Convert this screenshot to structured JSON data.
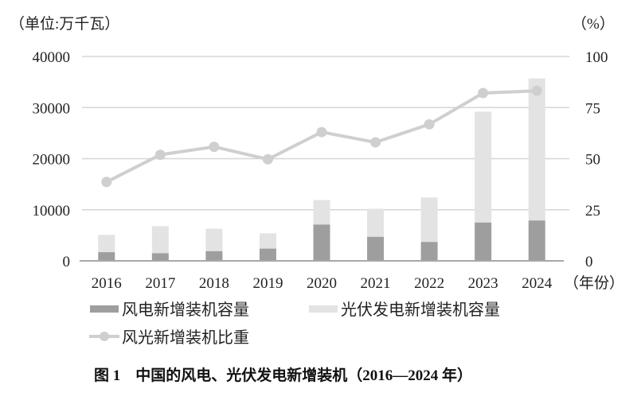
{
  "chart_data": {
    "type": "bar",
    "stacked": true,
    "categories": [
      "2016",
      "2017",
      "2018",
      "2019",
      "2020",
      "2021",
      "2022",
      "2023",
      "2024"
    ],
    "series": [
      {
        "name": "风电新增装机容量",
        "type": "bar",
        "axis": "left",
        "color": "#9e9e9e",
        "values": [
          1700,
          1500,
          1900,
          2400,
          7100,
          4700,
          3700,
          7500,
          7900
        ]
      },
      {
        "name": "光伏发电新增装机容量",
        "type": "bar",
        "axis": "left",
        "color": "#e3e3e3",
        "values": [
          3400,
          5300,
          4400,
          3000,
          4800,
          5500,
          8700,
          21700,
          27800
        ]
      },
      {
        "name": "风光新增装机比重",
        "type": "line",
        "axis": "right",
        "color": "#cfcfcf",
        "values": [
          38.6,
          51.9,
          55.8,
          49.7,
          63.0,
          58.0,
          66.8,
          82.1,
          83.2
        ]
      }
    ],
    "y_left": {
      "label": "（单位:万千瓦）",
      "range": [
        0,
        40000
      ],
      "ticks": [
        "0",
        "10000",
        "20000",
        "30000",
        "40000"
      ]
    },
    "y_right": {
      "label": "（%）",
      "range": [
        0,
        100
      ],
      "ticks": [
        "0",
        "25",
        "50",
        "75",
        "100"
      ]
    },
    "xlabel": "（年份）",
    "grid": true,
    "legend_position": "bottom",
    "title": "图 1　中国的风电、光伏发电新增装机（2016—2024 年）"
  }
}
